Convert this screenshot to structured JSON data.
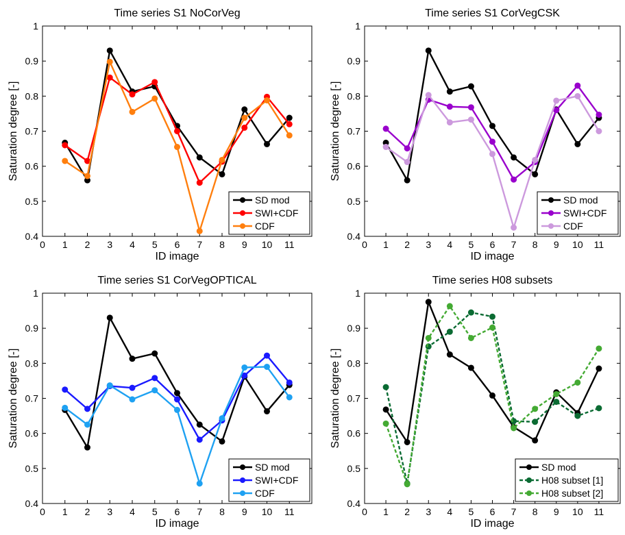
{
  "chart_data": [
    {
      "type": "line",
      "title": "Time series S1 NoCorVeg",
      "xlabel": "ID image",
      "ylabel": "Saturation degree [-]",
      "xlim": [
        0,
        12
      ],
      "ylim": [
        0.4,
        1
      ],
      "xticks": [
        "0",
        "1",
        "2",
        "3",
        "4",
        "5",
        "6",
        "7",
        "8",
        "9",
        "10",
        "11"
      ],
      "yticks": [
        "0.4",
        "0.5",
        "0.6",
        "0.7",
        "0.8",
        "0.9",
        "1"
      ],
      "x": [
        1,
        2,
        3,
        4,
        5,
        6,
        7,
        8,
        9,
        10,
        11
      ],
      "legend_position": "bottom-right",
      "series": [
        {
          "name": "SD mod",
          "color": "#000000",
          "dashed": false,
          "values": [
            0.667,
            0.56,
            0.93,
            0.813,
            0.828,
            0.715,
            0.625,
            0.577,
            0.762,
            0.663,
            0.738
          ]
        },
        {
          "name": "SWI+CDF",
          "color": "#ff0000",
          "dashed": false,
          "values": [
            0.66,
            0.615,
            0.853,
            0.805,
            0.84,
            0.7,
            0.553,
            0.613,
            0.71,
            0.798,
            0.72
          ]
        },
        {
          "name": "CDF",
          "color": "#ff7f0e",
          "dashed": false,
          "values": [
            0.615,
            0.572,
            0.898,
            0.755,
            0.793,
            0.655,
            0.415,
            0.618,
            0.738,
            0.788,
            0.688
          ]
        }
      ]
    },
    {
      "type": "line",
      "title": "Time series S1 CorVegCSK",
      "xlabel": "ID image",
      "ylabel": "Saturation degree [-]",
      "xlim": [
        0,
        12
      ],
      "ylim": [
        0.4,
        1
      ],
      "xticks": [
        "0",
        "1",
        "2",
        "3",
        "4",
        "5",
        "6",
        "7",
        "8",
        "9",
        "10",
        "11"
      ],
      "yticks": [
        "0.4",
        "0.5",
        "0.6",
        "0.7",
        "0.8",
        "0.9",
        "1"
      ],
      "x": [
        1,
        2,
        3,
        4,
        5,
        6,
        7,
        8,
        9,
        10,
        11
      ],
      "legend_position": "bottom-right",
      "series": [
        {
          "name": "SD mod",
          "color": "#000000",
          "dashed": false,
          "values": [
            0.667,
            0.56,
            0.93,
            0.813,
            0.828,
            0.715,
            0.625,
            0.577,
            0.762,
            0.663,
            0.738
          ]
        },
        {
          "name": "SWI+CDF",
          "color": "#9900cc",
          "dashed": false,
          "values": [
            0.707,
            0.651,
            0.79,
            0.77,
            0.768,
            0.67,
            0.562,
            0.612,
            0.76,
            0.83,
            0.747
          ]
        },
        {
          "name": "CDF",
          "color": "#cc99dd",
          "dashed": false,
          "values": [
            0.655,
            0.612,
            0.803,
            0.725,
            0.733,
            0.635,
            0.425,
            0.618,
            0.787,
            0.8,
            0.7
          ]
        }
      ]
    },
    {
      "type": "line",
      "title": "Time series S1 CorVegOPTICAL",
      "xlabel": "ID image",
      "ylabel": "Saturation degree [-]",
      "xlim": [
        0,
        12
      ],
      "ylim": [
        0.4,
        1
      ],
      "xticks": [
        "0",
        "1",
        "2",
        "3",
        "4",
        "5",
        "6",
        "7",
        "8",
        "9",
        "10",
        "11"
      ],
      "yticks": [
        "0.4",
        "0.5",
        "0.6",
        "0.7",
        "0.8",
        "0.9",
        "1"
      ],
      "x": [
        1,
        2,
        3,
        4,
        5,
        6,
        7,
        8,
        9,
        10,
        11
      ],
      "legend_position": "bottom-right",
      "series": [
        {
          "name": "SD mod",
          "color": "#000000",
          "dashed": false,
          "values": [
            0.667,
            0.56,
            0.93,
            0.813,
            0.828,
            0.715,
            0.625,
            0.577,
            0.762,
            0.663,
            0.738
          ]
        },
        {
          "name": "SWI+CDF",
          "color": "#1a1aff",
          "dashed": false,
          "values": [
            0.725,
            0.67,
            0.735,
            0.73,
            0.758,
            0.697,
            0.582,
            0.637,
            0.765,
            0.822,
            0.745
          ]
        },
        {
          "name": "CDF",
          "color": "#1ea1f2",
          "dashed": false,
          "values": [
            0.673,
            0.625,
            0.737,
            0.697,
            0.723,
            0.667,
            0.457,
            0.643,
            0.788,
            0.79,
            0.703
          ]
        }
      ]
    },
    {
      "type": "line",
      "title": "Time series H08  subsets",
      "xlabel": "ID image",
      "ylabel": "Saturation degree [-]",
      "xlim": [
        0,
        12
      ],
      "ylim": [
        0.4,
        1
      ],
      "xticks": [
        "0",
        "1",
        "2",
        "3",
        "4",
        "5",
        "6",
        "7",
        "8",
        "9",
        "10",
        "11"
      ],
      "yticks": [
        "0.4",
        "0.5",
        "0.6",
        "0.7",
        "0.8",
        "0.9",
        "1"
      ],
      "x": [
        1,
        2,
        3,
        4,
        5,
        6,
        7,
        8,
        9,
        10,
        11
      ],
      "legend_position": "bottom-right",
      "series": [
        {
          "name": "SD mod",
          "color": "#000000",
          "dashed": false,
          "values": [
            0.668,
            0.575,
            0.975,
            0.825,
            0.787,
            0.708,
            0.618,
            0.58,
            0.717,
            0.658,
            0.785
          ]
        },
        {
          "name": "H08 subset [1]",
          "color": "#0b6b33",
          "dashed": true,
          "values": [
            0.732,
            0.457,
            0.848,
            0.89,
            0.945,
            0.933,
            0.635,
            0.633,
            0.69,
            0.65,
            0.672
          ]
        },
        {
          "name": "H08 subset [2]",
          "color": "#44aa33",
          "dashed": true,
          "values": [
            0.628,
            0.455,
            0.872,
            0.963,
            0.872,
            0.902,
            0.615,
            0.67,
            0.712,
            0.745,
            0.842
          ]
        }
      ]
    }
  ]
}
